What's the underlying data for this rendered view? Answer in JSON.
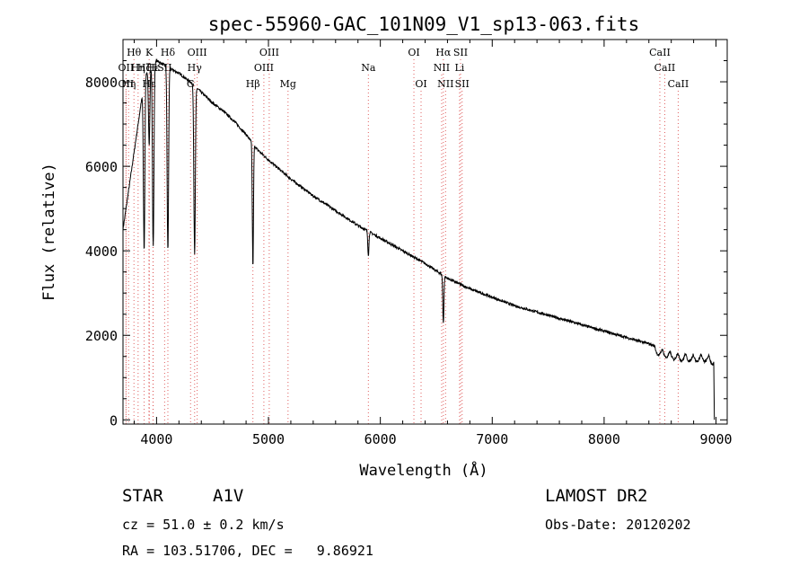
{
  "chart_data": {
    "type": "line",
    "title": "spec-55960-GAC_101N09_V1_sp13-063.fits",
    "xlabel": "Wavelength (Å)",
    "ylabel": "Flux (relative)",
    "xlim": [
      3700,
      9100
    ],
    "ylim": [
      -100,
      9000
    ],
    "xticks": [
      4000,
      5000,
      6000,
      7000,
      8000,
      9000
    ],
    "yticks": [
      0,
      2000,
      4000,
      6000,
      8000
    ],
    "grid": false,
    "continuum": {
      "x": [
        3700,
        3900,
        4000,
        4100,
        4200,
        4300,
        4400,
        4500,
        4600,
        4700,
        4800,
        4900,
        5000,
        5200,
        5400,
        5600,
        5800,
        6000,
        6200,
        6400,
        6600,
        6800,
        7000,
        7200,
        7400,
        7600,
        7800,
        8000,
        8200,
        8400,
        8500,
        8600,
        8700,
        8800,
        8900,
        8970
      ],
      "y": [
        4500,
        8200,
        8500,
        8350,
        8200,
        8000,
        7750,
        7500,
        7300,
        7050,
        6750,
        6400,
        6150,
        5700,
        5300,
        4950,
        4600,
        4300,
        4000,
        3700,
        3350,
        3100,
        2900,
        2700,
        2550,
        2400,
        2250,
        2100,
        1950,
        1800,
        1700,
        1620,
        1580,
        1560,
        1560,
        1500
      ]
    },
    "absorption_lines": [
      {
        "name": "Balmer H-zeta",
        "x": 3889,
        "y": 4000
      },
      {
        "name": "Ca K",
        "x": 3934,
        "y": 6500
      },
      {
        "name": "H-epsilon",
        "x": 3970,
        "y": 4100
      },
      {
        "name": "H-delta",
        "x": 4101,
        "y": 4000
      },
      {
        "name": "H-gamma",
        "x": 4340,
        "y": 3900
      },
      {
        "name": "H-beta",
        "x": 4861,
        "y": 3600
      },
      {
        "name": "Na D",
        "x": 5893,
        "y": 3900
      },
      {
        "name": "H-alpha",
        "x": 6563,
        "y": 2300
      }
    ],
    "line_markers": [
      {
        "label": "Hθ",
        "x": 3798,
        "row": 1
      },
      {
        "label": "K",
        "x": 3934,
        "row": 1
      },
      {
        "label": "Hδ",
        "x": 4101,
        "row": 1
      },
      {
        "label": "OIII",
        "x": 4363,
        "row": 1
      },
      {
        "label": "OIII",
        "x": 5007,
        "row": 1
      },
      {
        "label": "OI",
        "x": 6300,
        "row": 1
      },
      {
        "label": "Hα",
        "x": 6563,
        "row": 1
      },
      {
        "label": "SII",
        "x": 6717,
        "row": 1
      },
      {
        "label": "CaII",
        "x": 8498,
        "row": 1
      },
      {
        "label": "OII",
        "x": 3727,
        "row": 2
      },
      {
        "label": "Hη",
        "x": 3835,
        "row": 2
      },
      {
        "label": "Hζ",
        "x": 3889,
        "row": 2
      },
      {
        "label": "H",
        "x": 3968,
        "row": 2
      },
      {
        "label": "Hε",
        "x": 3970,
        "row": 2
      },
      {
        "label": "SII",
        "x": 4072,
        "row": 2
      },
      {
        "label": "Hγ",
        "x": 4340,
        "row": 2
      },
      {
        "label": "OIII",
        "x": 4959,
        "row": 2
      },
      {
        "label": "Na",
        "x": 5893,
        "row": 2
      },
      {
        "label": "NII",
        "x": 6548,
        "row": 2
      },
      {
        "label": "Li",
        "x": 6708,
        "row": 2
      },
      {
        "label": "CaII",
        "x": 8542,
        "row": 2
      },
      {
        "label": "OII",
        "x": 3727,
        "row": 3
      },
      {
        "label": "Hη",
        "x": 3750,
        "row": 3
      },
      {
        "label": "Hε",
        "x": 3933,
        "row": 3
      },
      {
        "label": "G",
        "x": 4304,
        "row": 3
      },
      {
        "label": "Hβ",
        "x": 4861,
        "row": 3
      },
      {
        "label": "Mg",
        "x": 5175,
        "row": 3
      },
      {
        "label": "OI",
        "x": 6364,
        "row": 3
      },
      {
        "label": "NII",
        "x": 6583,
        "row": 3
      },
      {
        "label": "SII",
        "x": 6731,
        "row": 3
      },
      {
        "label": "CaII",
        "x": 8662,
        "row": 3
      }
    ]
  },
  "info": {
    "object_class": "STAR",
    "subclass": "A1V",
    "survey": "LAMOST DR2",
    "cz_text": "cz = 51.0 ± 0.2 km/s",
    "obs_date": "Obs-Date: 20120202",
    "coords": "RA = 103.51706, DEC =   9.86921"
  },
  "colors": {
    "spectrum": "#000000",
    "marker_lines": "#e06060",
    "axes": "#000000"
  }
}
